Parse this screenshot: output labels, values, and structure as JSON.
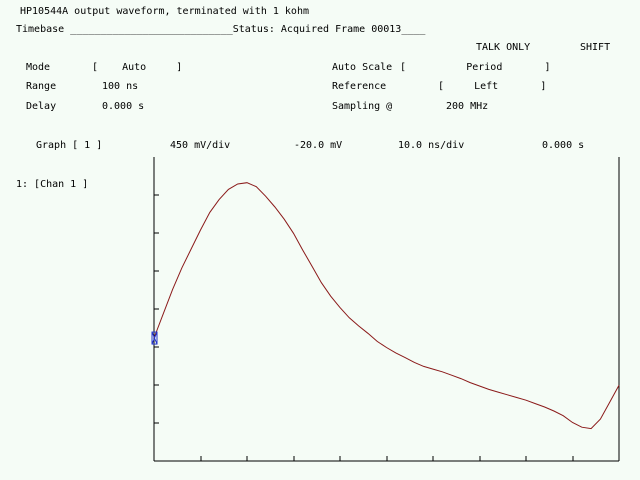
{
  "title": "HP10544A output waveform, terminated with 1 kohm",
  "timebase_line": "Timebase ___________________________Status: Acquired Frame 00013____",
  "softkeys": {
    "talk_only": "TALK ONLY",
    "shift": "SHIFT"
  },
  "settings": {
    "mode_label": "Mode",
    "mode_value": "[    Auto     ]",
    "range_label": "Range",
    "range_value": "100 ns",
    "delay_label": "Delay",
    "delay_value": "0.000 s",
    "autoscale_label": "Auto Scale",
    "autoscale_value": "[          Period       ]",
    "reference_label": "Reference",
    "reference_value": "[     Left       ]",
    "sampling_label": "Sampling @",
    "sampling_value": "200 MHz"
  },
  "graph_header": {
    "graph_label": "Graph [ 1 ]",
    "volts_per_div": "450 mV/div",
    "offset": "-20.0 mV",
    "time_per_div": "10.0 ns/div",
    "delay": "0.000 s"
  },
  "channel_label": "1: [Chan 1 ]",
  "colors": {
    "trace": "#8b1a1a",
    "grid": "#000000",
    "background": "#f5fcf6",
    "marker": "#2233cc"
  },
  "chart_data": {
    "type": "line",
    "x_unit": "ns",
    "y_unit": "V",
    "x_range": [
      0,
      100
    ],
    "y_range": [
      -1.82,
      2.68
    ],
    "x": [
      0,
      2,
      4,
      6,
      8,
      10,
      12,
      14,
      16,
      18,
      20,
      22,
      24,
      26,
      28,
      30,
      32,
      34,
      36,
      38,
      40,
      42,
      44,
      46,
      48,
      50,
      52,
      54,
      56,
      58,
      60,
      62,
      64,
      66,
      68,
      70,
      72,
      74,
      76,
      78,
      80,
      82,
      84,
      86,
      88,
      90,
      92,
      94,
      96,
      98,
      100
    ],
    "y": [
      0.0,
      0.36,
      0.72,
      1.04,
      1.32,
      1.6,
      1.86,
      2.05,
      2.2,
      2.28,
      2.3,
      2.24,
      2.1,
      1.94,
      1.76,
      1.55,
      1.3,
      1.06,
      0.82,
      0.62,
      0.45,
      0.3,
      0.18,
      0.07,
      -0.05,
      -0.14,
      -0.22,
      -0.29,
      -0.36,
      -0.42,
      -0.46,
      -0.5,
      -0.55,
      -0.6,
      -0.66,
      -0.71,
      -0.76,
      -0.8,
      -0.84,
      -0.88,
      -0.92,
      -0.97,
      -1.02,
      -1.08,
      -1.15,
      -1.25,
      -1.32,
      -1.34,
      -1.2,
      -0.95,
      -0.7
    ]
  }
}
